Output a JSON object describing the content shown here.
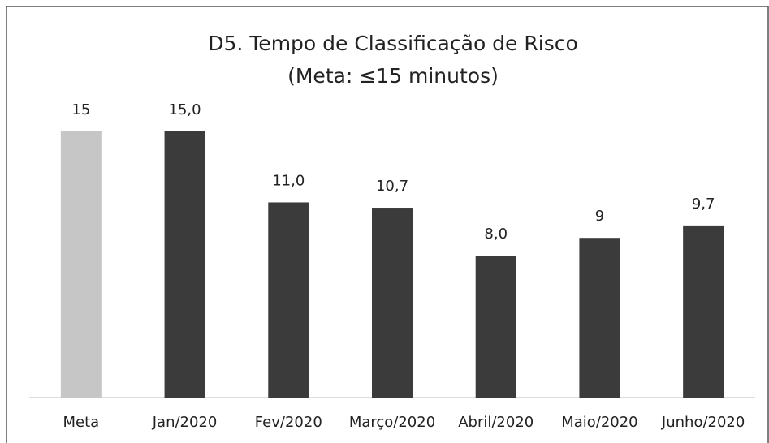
{
  "chart_data": {
    "type": "bar",
    "title": "D5. Tempo de Classificação de Risco",
    "subtitle": "(Meta: ≤15 minutos)",
    "categories": [
      "Meta",
      "Jan/2020",
      "Fev/2020",
      "Março/2020",
      "Abril/2020",
      "Maio/2020",
      "Junho/2020"
    ],
    "values": [
      15,
      15,
      11,
      10.7,
      8,
      9,
      9.7
    ],
    "value_labels": [
      "15",
      "15,0",
      "11,0",
      "10,7",
      "8,0",
      "9",
      "9,7"
    ],
    "colors": [
      "#c6c6c6",
      "#3b3b3b",
      "#3b3b3b",
      "#3b3b3b",
      "#3b3b3b",
      "#3b3b3b",
      "#3b3b3b"
    ]
  }
}
